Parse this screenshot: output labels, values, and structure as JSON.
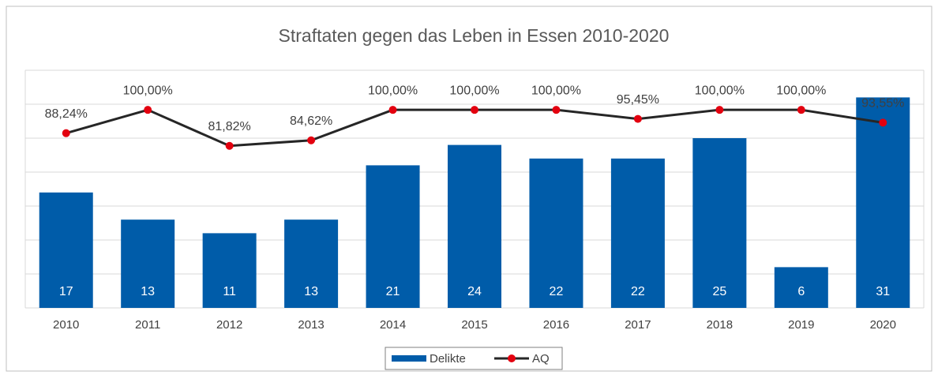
{
  "chart_data": {
    "type": "bar_line",
    "title": "Straftaten gegen das Leben in Essen 2010-2020",
    "categories": [
      "2010",
      "2011",
      "2012",
      "2013",
      "2014",
      "2015",
      "2016",
      "2017",
      "2018",
      "2019",
      "2020"
    ],
    "series": [
      {
        "name": "Delikte",
        "type": "bar",
        "color": "#005ca9",
        "values": [
          17,
          13,
          11,
          13,
          21,
          24,
          22,
          22,
          25,
          6,
          31
        ]
      },
      {
        "name": "AQ",
        "type": "line",
        "axis": "y2",
        "color": "#262626",
        "marker_color": "#e3000f",
        "values": [
          88.24,
          100,
          81.82,
          84.62,
          100,
          100,
          100,
          95.45,
          100,
          100,
          93.55
        ],
        "value_labels": [
          "88,24%",
          "100,00%",
          "81,82%",
          "84,62%",
          "100,00%",
          "100,00%",
          "100,00%",
          "95,45%",
          "100,00%",
          "100,00%",
          "93,55%"
        ]
      }
    ],
    "ylim": [
      0,
      35
    ],
    "yticks": [
      0,
      5,
      10,
      15,
      20,
      25,
      30,
      35
    ],
    "y2lim": [
      0,
      120
    ],
    "grid": true,
    "legend": "bottom"
  }
}
